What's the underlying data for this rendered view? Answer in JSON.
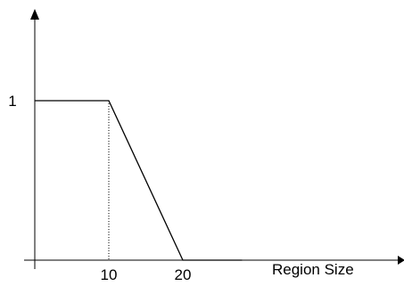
{
  "chart_data": {
    "type": "line",
    "xlabel": "Region Size",
    "ylabel": "",
    "title": "",
    "xlim": [
      -0.3,
      28
    ],
    "ylim": [
      0,
      1.5
    ],
    "x_ticks": [
      {
        "value": 10,
        "label": "10"
      },
      {
        "value": 20,
        "label": "20"
      }
    ],
    "y_ticks": [
      {
        "value": 1,
        "label": "1"
      }
    ],
    "series": [
      {
        "x": [
          0,
          10,
          20,
          28
        ],
        "y": [
          1,
          1,
          0,
          0
        ]
      }
    ],
    "guides": [
      {
        "type": "vertical",
        "x": 10,
        "from_y": 0,
        "to_y": 1,
        "style": "dotted"
      }
    ],
    "colors": {
      "axis": "#000000",
      "line": "#000000",
      "background": "#ffffff"
    }
  }
}
